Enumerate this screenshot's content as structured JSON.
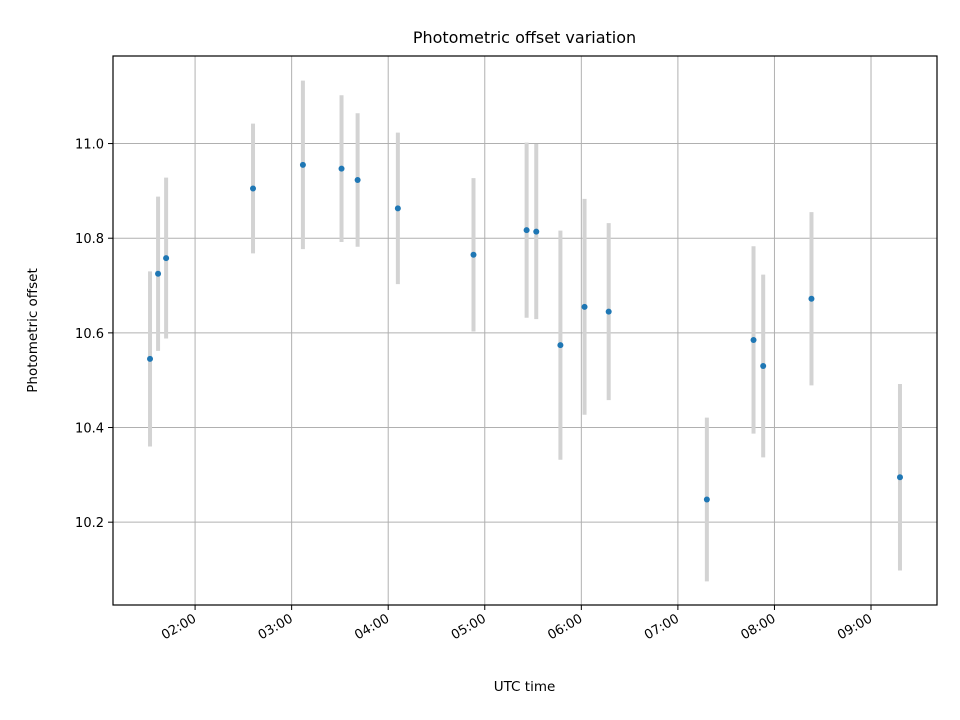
{
  "chart_data": {
    "type": "scatter",
    "title": "Photometric offset variation",
    "xlabel": "UTC time",
    "ylabel": "Photometric offset",
    "xlim": [
      "01:09",
      "09:41"
    ],
    "ylim": [
      10.025,
      11.185
    ],
    "x_ticks": [
      "02:00",
      "03:00",
      "04:00",
      "05:00",
      "06:00",
      "07:00",
      "08:00",
      "09:00"
    ],
    "y_ticks": [
      10.2,
      10.4,
      10.6,
      10.8,
      11.0
    ],
    "y_tick_labels": [
      "10.2",
      "10.4",
      "10.6",
      "10.8",
      "11.0"
    ],
    "grid": true,
    "point_color": "#1f77b4",
    "errorbar_color": "#d3d3d3",
    "points": [
      {
        "x": "01:32",
        "y": 10.545,
        "err": 0.185
      },
      {
        "x": "01:37",
        "y": 10.725,
        "err": 0.163
      },
      {
        "x": "01:42",
        "y": 10.758,
        "err": 0.17
      },
      {
        "x": "02:36",
        "y": 10.905,
        "err": 0.137
      },
      {
        "x": "03:07",
        "y": 10.955,
        "err": 0.178
      },
      {
        "x": "03:31",
        "y": 10.947,
        "err": 0.155
      },
      {
        "x": "03:41",
        "y": 10.923,
        "err": 0.141
      },
      {
        "x": "04:06",
        "y": 10.863,
        "err": 0.16
      },
      {
        "x": "04:53",
        "y": 10.765,
        "err": 0.162
      },
      {
        "x": "05:26",
        "y": 10.817,
        "err": 0.185
      },
      {
        "x": "05:32",
        "y": 10.814,
        "err": 0.185
      },
      {
        "x": "05:47",
        "y": 10.574,
        "err": 0.242
      },
      {
        "x": "06:02",
        "y": 10.655,
        "err": 0.228
      },
      {
        "x": "06:17",
        "y": 10.645,
        "err": 0.187
      },
      {
        "x": "07:18",
        "y": 10.248,
        "err": 0.173
      },
      {
        "x": "07:47",
        "y": 10.585,
        "err": 0.198
      },
      {
        "x": "07:53",
        "y": 10.53,
        "err": 0.193
      },
      {
        "x": "08:23",
        "y": 10.672,
        "err": 0.183
      },
      {
        "x": "09:18",
        "y": 10.295,
        "err": 0.197
      }
    ]
  }
}
